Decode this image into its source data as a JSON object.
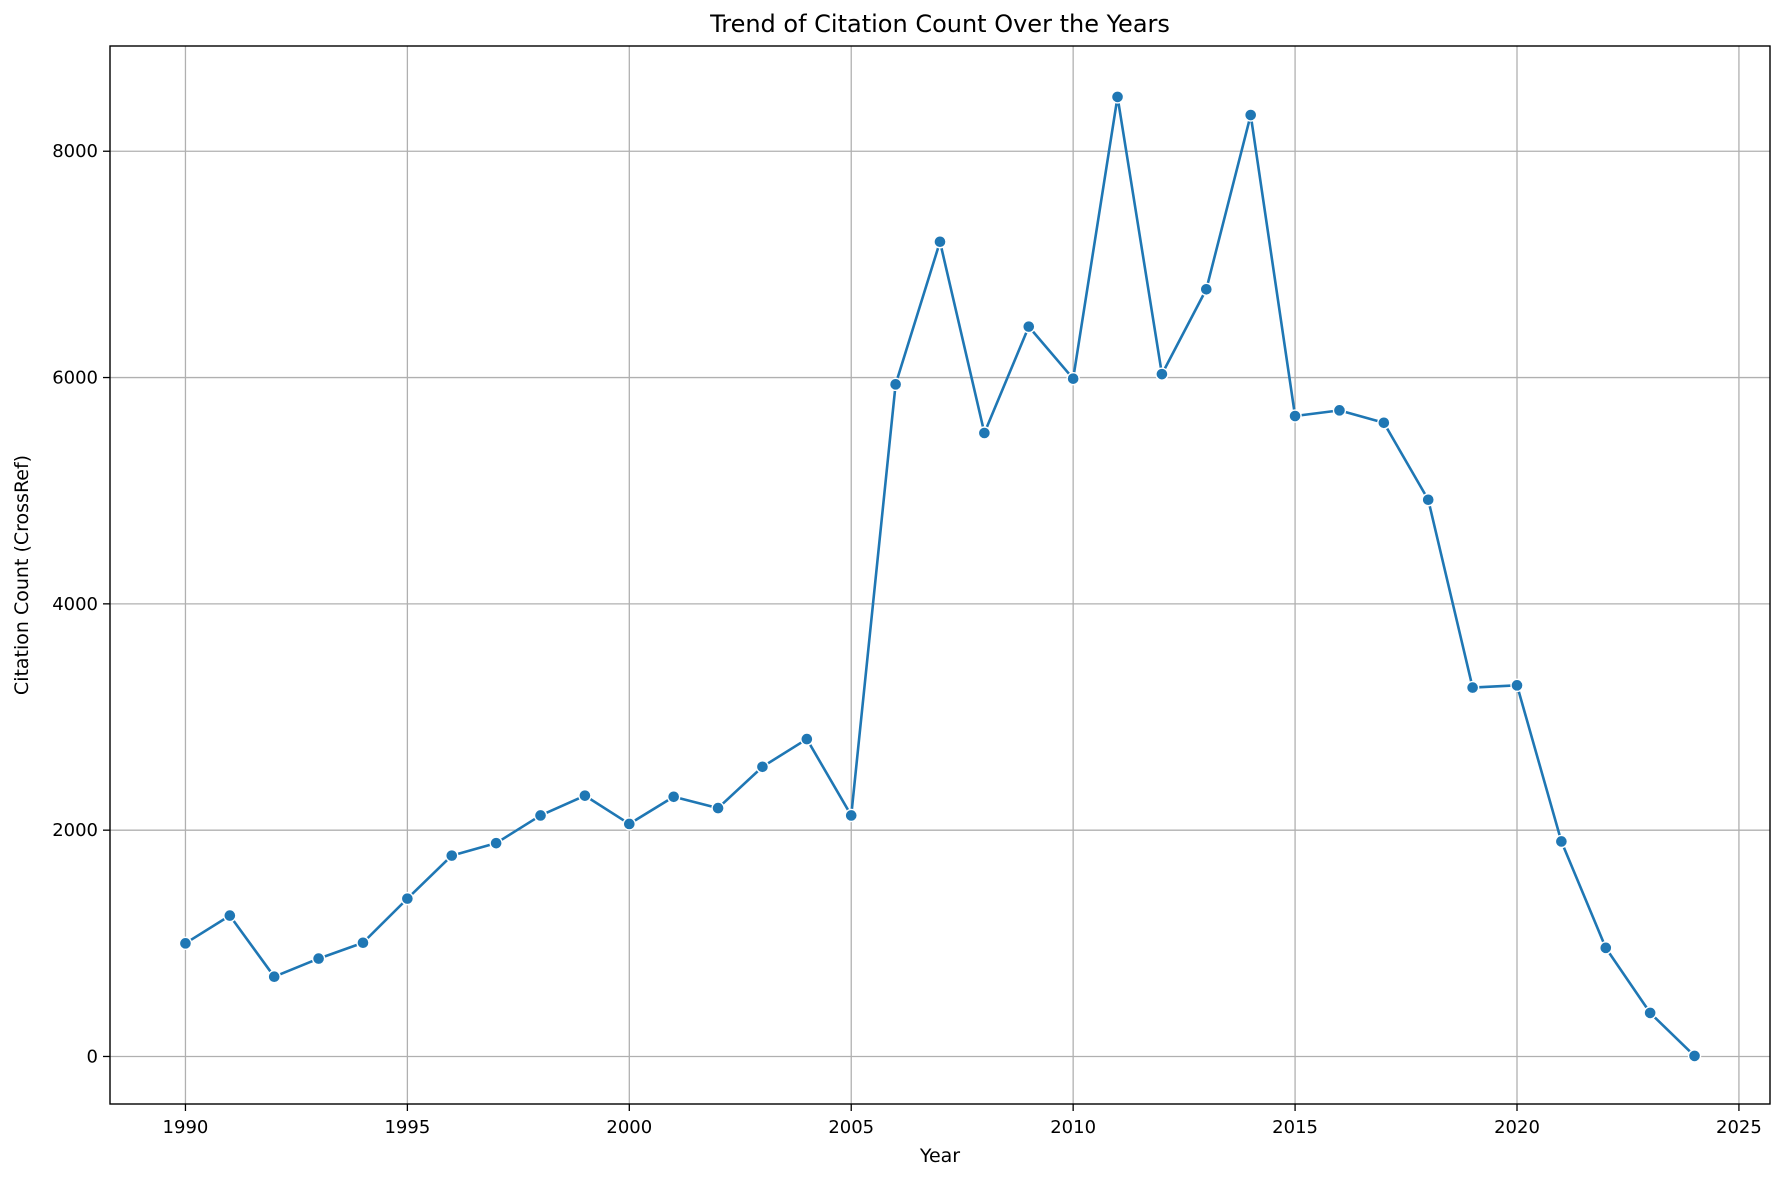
{
  "colors": {
    "series": "#1f77b4",
    "grid": "#b0b0b0",
    "background": "#ffffff"
  },
  "chart_data": {
    "type": "line",
    "title": "Trend of Citation Count Over the Years",
    "xlabel": "Year",
    "ylabel": "Citation Count (CrossRef)",
    "xlim": [
      1988.3,
      2025.7
    ],
    "ylim": [
      -420,
      8930
    ],
    "xticks": [
      1990,
      1995,
      2000,
      2005,
      2010,
      2015,
      2020,
      2025
    ],
    "yticks": [
      0,
      2000,
      4000,
      6000,
      8000
    ],
    "grid": true,
    "marker": "circle",
    "series": [
      {
        "x": [
          1990,
          1991,
          1992,
          1993,
          1994,
          1995,
          1996,
          1997,
          1998,
          1999,
          2000,
          2001,
          2002,
          2003,
          2004,
          2005,
          2006,
          2007,
          2008,
          2009,
          2010,
          2011,
          2012,
          2013,
          2014,
          2015,
          2016,
          2017,
          2018,
          2019,
          2020,
          2021,
          2022,
          2023,
          2024
        ],
        "values": [
          1000,
          1245,
          705,
          865,
          1005,
          1395,
          1775,
          1885,
          2130,
          2305,
          2055,
          2295,
          2195,
          2560,
          2805,
          2130,
          5940,
          7200,
          5510,
          6450,
          5990,
          8480,
          6030,
          6780,
          8320,
          5660,
          5710,
          5600,
          4920,
          3260,
          3280,
          1900,
          960,
          385,
          5
        ]
      }
    ]
  }
}
